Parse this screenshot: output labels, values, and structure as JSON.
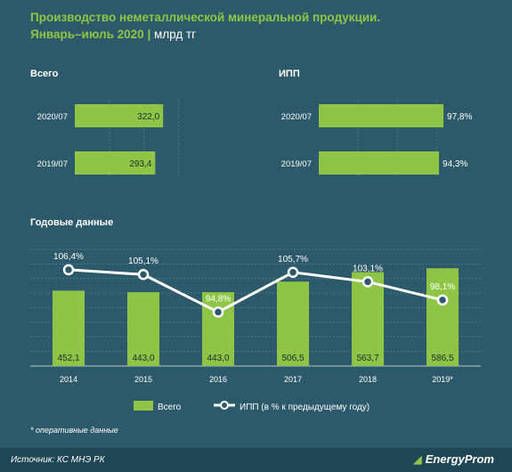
{
  "title_line1": "Производство неметаллической минеральной продукции.",
  "title_line2": "Январь–июль 2020",
  "title_unit": "млрд тг",
  "footnote": "* оперативные данные",
  "source": "Источник: КС МНЭ РК",
  "logo": "EnergyProm",
  "colors": {
    "bar": "#8fc546",
    "line": "#ffffff",
    "background": "#2c5a6a",
    "title": "#8fc546"
  },
  "chart_data": [
    {
      "type": "bar",
      "orientation": "horizontal",
      "title": "Всего",
      "categories": [
        "2020/07",
        "2019/07"
      ],
      "values": [
        322.0,
        293.4
      ],
      "value_labels": [
        "322,0",
        "293,4"
      ],
      "xlim": [
        0,
        450
      ]
    },
    {
      "type": "bar",
      "orientation": "horizontal",
      "title": "ИПП",
      "categories": [
        "2020/07",
        "2019/07"
      ],
      "values": [
        97.8,
        94.3
      ],
      "value_labels": [
        "97,8%",
        "94,3%"
      ],
      "xlim": [
        0,
        110
      ]
    },
    {
      "type": "bar+line",
      "title": "Годовые данные",
      "categories": [
        "2014",
        "2015",
        "2016",
        "2017",
        "2018",
        "2019*"
      ],
      "series": [
        {
          "name": "Всего",
          "type": "bar",
          "values": [
            452.1,
            443.0,
            443.0,
            506.5,
            563.7,
            586.5
          ],
          "value_labels": [
            "452,1",
            "443,0",
            "443,0",
            "506,5",
            "563,7",
            "586,5"
          ]
        },
        {
          "name": "ИПП (в %  к предыдущему году)",
          "type": "line",
          "values": [
            106.4,
            105.1,
            94.8,
            105.7,
            103.1,
            98.1
          ],
          "value_labels": [
            "106,4%",
            "105,1%",
            "94,8%",
            "105,7%",
            "103,1%",
            "98,1%"
          ]
        }
      ],
      "ylim_bar": [
        0,
        700
      ],
      "ylim_line": [
        80,
        112
      ],
      "legend": "bottom",
      "grid": true
    }
  ]
}
